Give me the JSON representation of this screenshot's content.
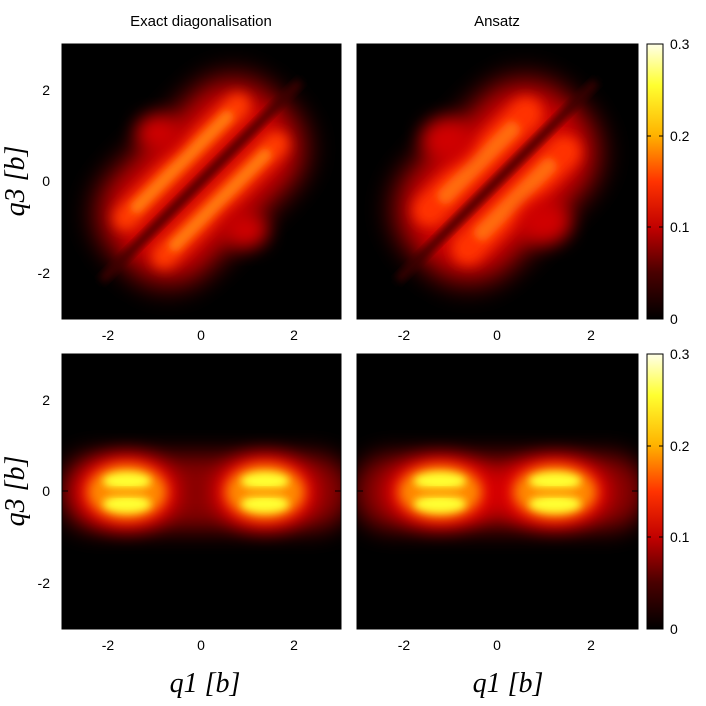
{
  "chart_data": [
    {
      "type": "heatmap",
      "title": "Exact diagonalisation",
      "xlabel": "",
      "ylabel": "q3 [b]",
      "xlim": [
        -3,
        3
      ],
      "ylim": [
        -3,
        3
      ],
      "xticks": [
        "-2",
        "0",
        "2"
      ],
      "yticks": [
        "2",
        "0",
        "-2"
      ],
      "pattern": "diagonal",
      "peak_value": 0.17,
      "lobes": [
        {
          "x": -0.35,
          "y": 0.35,
          "w": 2.0,
          "h": 0.32,
          "v": 0.11
        },
        {
          "x": 0.35,
          "y": -0.35,
          "w": 2.0,
          "h": 0.32,
          "v": 0.11
        },
        {
          "x": -0.9,
          "y": 0.9,
          "w": 0.5,
          "h": 0.5,
          "v": 0.07
        },
        {
          "x": 0.9,
          "y": -0.9,
          "w": 0.5,
          "h": 0.5,
          "v": 0.07
        }
      ]
    },
    {
      "type": "heatmap",
      "title": "Ansatz",
      "xlabel": "",
      "ylabel": "",
      "xlim": [
        -3,
        3
      ],
      "ylim": [
        -3,
        3
      ],
      "xticks": [
        "-2",
        "0",
        "2"
      ],
      "yticks": [],
      "pattern": "diagonal",
      "peak_value": 0.15,
      "lobes": [
        {
          "x": -0.4,
          "y": 0.4,
          "w": 1.9,
          "h": 0.4,
          "v": 0.1
        },
        {
          "x": 0.4,
          "y": -0.4,
          "w": 1.9,
          "h": 0.4,
          "v": 0.1
        }
      ]
    },
    {
      "type": "heatmap",
      "title": "",
      "xlabel": "q1 [b]",
      "ylabel": "q3 [b]",
      "xlim": [
        -3,
        3
      ],
      "ylim": [
        -3,
        3
      ],
      "xticks": [
        "-2",
        "0",
        "2"
      ],
      "yticks": [
        "2",
        "0",
        "-2"
      ],
      "pattern": "horizontal",
      "peak_value": 0.27,
      "lobes": [
        {
          "x": -1.6,
          "y": 0.25,
          "v": 0.27
        },
        {
          "x": -1.6,
          "y": -0.25,
          "v": 0.27
        },
        {
          "x": 1.4,
          "y": 0.25,
          "v": 0.27
        },
        {
          "x": 1.4,
          "y": -0.25,
          "v": 0.27
        }
      ]
    },
    {
      "type": "heatmap",
      "title": "",
      "xlabel": "q1 [b]",
      "ylabel": "",
      "xlim": [
        -3,
        3
      ],
      "ylim": [
        -3,
        3
      ],
      "xticks": [
        "-2",
        "0",
        "2"
      ],
      "yticks": [],
      "pattern": "horizontal",
      "peak_value": 0.26,
      "lobes": [
        {
          "x": -1.2,
          "y": 0.25,
          "v": 0.26
        },
        {
          "x": -1.2,
          "y": -0.25,
          "v": 0.26
        },
        {
          "x": 1.2,
          "y": 0.25,
          "v": 0.26
        },
        {
          "x": 1.2,
          "y": -0.25,
          "v": 0.26
        }
      ]
    }
  ],
  "colorbar": {
    "range": [
      0,
      0.3
    ],
    "ticks": [
      "0.3",
      "0.2",
      "0.1",
      "0"
    ],
    "colormap": [
      "#000000",
      "#8b0000",
      "#ff0000",
      "#ff9900",
      "#ffff00",
      "#ffffe0"
    ]
  },
  "labels": {
    "title_left": "Exact diagonalisation",
    "title_right": "Ansatz",
    "q3_top": "q3 [b]",
    "q3_bottom": "q3 [b]",
    "q1_left": "q1 [b]",
    "q1_right": "q1 [b]"
  }
}
